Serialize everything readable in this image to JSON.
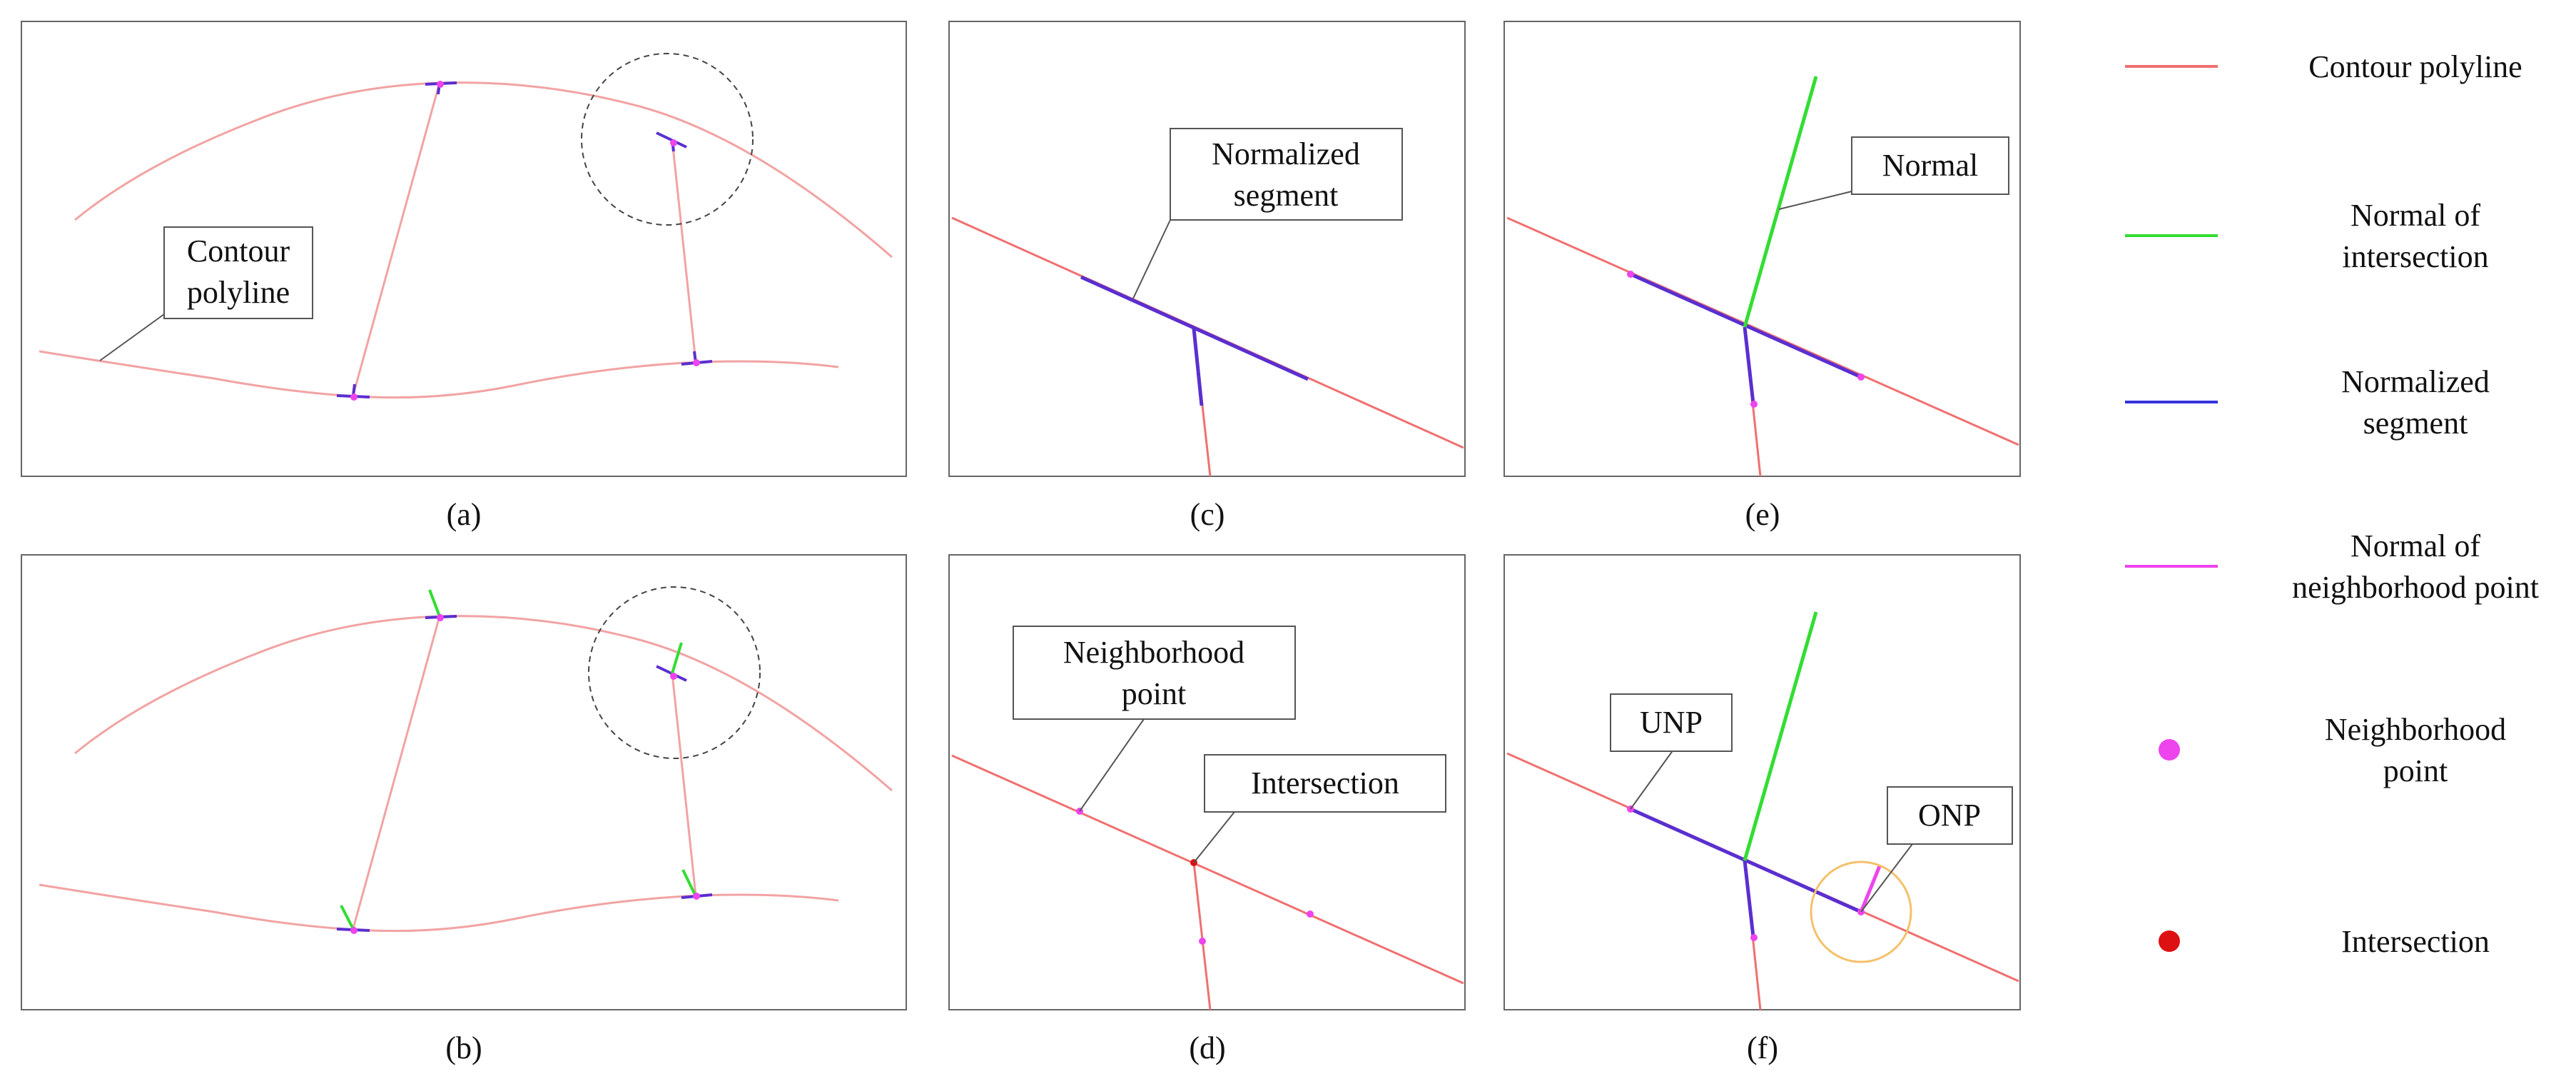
{
  "panels": {
    "a": {
      "caption": "(a)",
      "callout": [
        "Contour",
        "polyline"
      ]
    },
    "b": {
      "caption": "(b)"
    },
    "c": {
      "caption": "(c)",
      "callout": [
        "Normalized",
        "segment"
      ]
    },
    "d": {
      "caption": "(d)",
      "callout_neighborhood": [
        "Neighborhood",
        "point"
      ],
      "callout_intersection": "Intersection"
    },
    "e": {
      "caption": "(e)",
      "callout": "Normal"
    },
    "f": {
      "caption": "(f)",
      "callout_unp": "UNP",
      "callout_onp": "ONP"
    }
  },
  "legend": [
    {
      "lines": [
        "Contour polyline"
      ],
      "color": "#f07070",
      "icon": "line"
    },
    {
      "lines": [
        "Normal of",
        "intersection"
      ],
      "color": "#33dd33",
      "icon": "line"
    },
    {
      "lines": [
        "Normalized",
        "segment"
      ],
      "color": "#3333dd",
      "icon": "line"
    },
    {
      "lines": [
        "Normal of",
        "neighborhood point"
      ],
      "color": "#ee44ee",
      "icon": "line"
    },
    {
      "lines": [
        "Neighborhood",
        "point"
      ],
      "color": "#ee44ee",
      "icon": "dot"
    },
    {
      "lines": [
        "Intersection"
      ],
      "color": "#dd1111",
      "icon": "dot"
    }
  ],
  "colors": {
    "contour": "#f2a3a3",
    "contour_strong": "#f07070",
    "normal_intersection": "#33dd33",
    "normalized_segment": "#5a2fd0",
    "neighborhood_point": "#ee44ee",
    "intersection": "#dd1111",
    "highlight_circle": "#f5c06a"
  }
}
